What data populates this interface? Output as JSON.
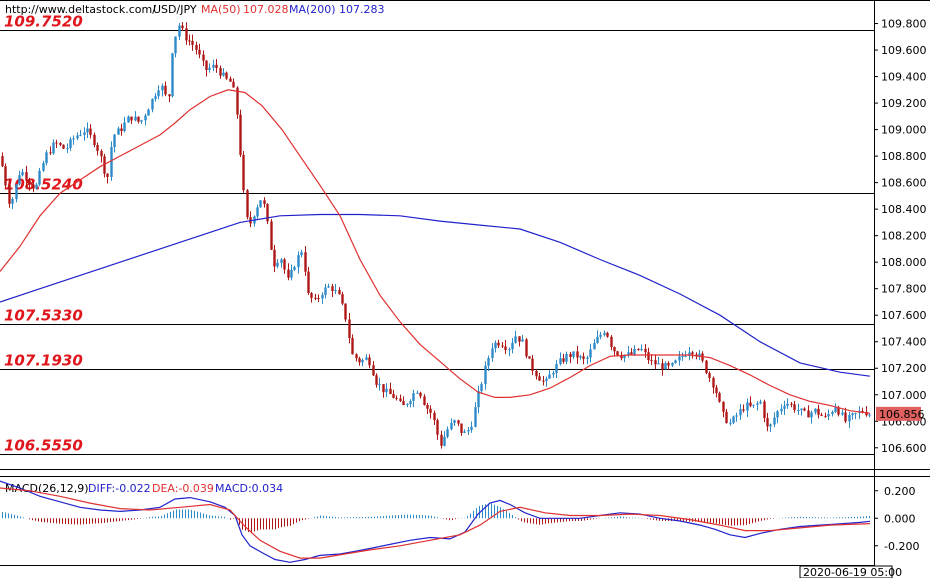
{
  "header": {
    "url": "http://www.deltastock.com/",
    "symbol": "USD/JPY",
    "ma50_label": "MA(50)",
    "ma50_value": "107.028",
    "ma200_label": "MA(200)",
    "ma200_value": "107.283"
  },
  "macd_header": {
    "label": "MACD(26,12,9)",
    "diff": "DIFF:-0.022",
    "dea": "DEA:-0.039",
    "macd": "MACD:0.034"
  },
  "colors": {
    "up": "#2e8bc9",
    "down": "#b01818",
    "ma50": "#e03030",
    "ma200": "#2222cc",
    "level_text": "#e0151b",
    "badge": "#e06060",
    "diff_line": "#2222cc",
    "dea_line": "#e03030"
  },
  "date_label": "2020-06-19 05:00",
  "last_price": "106.856",
  "chart_data": [
    {
      "type": "candlestick",
      "title": "USD/JPY",
      "ylim": [
        106.44,
        109.97
      ],
      "y_ticks": [
        "109.800",
        "109.600",
        "109.400",
        "109.200",
        "109.000",
        "108.800",
        "108.600",
        "108.400",
        "108.200",
        "108.000",
        "107.800",
        "107.600",
        "107.400",
        "107.200",
        "107.000",
        "106.800",
        "106.600"
      ],
      "levels": [
        {
          "value": 109.752,
          "label": "109.7520"
        },
        {
          "value": 108.524,
          "label": "108.5240"
        },
        {
          "value": 107.533,
          "label": "107.5330"
        },
        {
          "value": 107.193,
          "label": "107.1930"
        },
        {
          "value": 106.555,
          "label": "106.5550"
        }
      ],
      "price_path": [
        [
          0,
          108.8
        ],
        [
          10,
          108.42
        ],
        [
          20,
          108.7
        ],
        [
          35,
          108.55
        ],
        [
          45,
          108.8
        ],
        [
          55,
          108.9
        ],
        [
          65,
          108.85
        ],
        [
          75,
          108.95
        ],
        [
          85,
          109.0
        ],
        [
          95,
          108.9
        ],
        [
          100,
          108.8
        ],
        [
          107,
          108.62
        ],
        [
          112,
          108.95
        ],
        [
          120,
          109.0
        ],
        [
          130,
          109.1
        ],
        [
          140,
          109.05
        ],
        [
          150,
          109.2
        ],
        [
          160,
          109.35
        ],
        [
          168,
          109.2
        ],
        [
          172,
          109.6
        ],
        [
          178,
          109.8
        ],
        [
          185,
          109.7
        ],
        [
          195,
          109.62
        ],
        [
          205,
          109.45
        ],
        [
          215,
          109.48
        ],
        [
          225,
          109.38
        ],
        [
          232,
          109.35
        ],
        [
          238,
          109.05
        ],
        [
          242,
          108.6
        ],
        [
          248,
          108.25
        ],
        [
          255,
          108.4
        ],
        [
          262,
          108.5
        ],
        [
          268,
          108.25
        ],
        [
          273,
          107.98
        ],
        [
          280,
          108.05
        ],
        [
          288,
          107.85
        ],
        [
          295,
          108.0
        ],
        [
          302,
          108.1
        ],
        [
          308,
          107.75
        ],
        [
          315,
          107.7
        ],
        [
          322,
          107.78
        ],
        [
          330,
          107.82
        ],
        [
          338,
          107.75
        ],
        [
          345,
          107.6
        ],
        [
          352,
          107.3
        ],
        [
          360,
          107.25
        ],
        [
          368,
          107.28
        ],
        [
          376,
          107.1
        ],
        [
          385,
          107.02
        ],
        [
          395,
          106.98
        ],
        [
          402,
          106.9
        ],
        [
          410,
          106.98
        ],
        [
          418,
          107.05
        ],
        [
          425,
          106.92
        ],
        [
          432,
          106.85
        ],
        [
          440,
          106.62
        ],
        [
          448,
          106.75
        ],
        [
          455,
          106.8
        ],
        [
          463,
          106.7
        ],
        [
          470,
          106.75
        ],
        [
          478,
          107.0
        ],
        [
          485,
          107.2
        ],
        [
          492,
          107.38
        ],
        [
          500,
          107.4
        ],
        [
          508,
          107.35
        ],
        [
          515,
          107.45
        ],
        [
          522,
          107.4
        ],
        [
          530,
          107.22
        ],
        [
          537,
          107.15
        ],
        [
          545,
          107.08
        ],
        [
          552,
          107.18
        ],
        [
          560,
          107.25
        ],
        [
          568,
          107.3
        ],
        [
          575,
          107.3
        ],
        [
          585,
          107.25
        ],
        [
          595,
          107.4
        ],
        [
          605,
          107.5
        ],
        [
          612,
          107.35
        ],
        [
          620,
          107.3
        ],
        [
          630,
          107.3
        ],
        [
          640,
          107.35
        ],
        [
          650,
          107.25
        ],
        [
          660,
          107.22
        ],
        [
          670,
          107.2
        ],
        [
          680,
          107.28
        ],
        [
          690,
          107.35
        ],
        [
          700,
          107.28
        ],
        [
          708,
          107.15
        ],
        [
          715,
          107.05
        ],
        [
          722,
          106.85
        ],
        [
          730,
          106.78
        ],
        [
          737,
          106.85
        ],
        [
          745,
          106.92
        ],
        [
          752,
          106.9
        ],
        [
          760,
          106.95
        ],
        [
          768,
          106.72
        ],
        [
          775,
          106.85
        ],
        [
          785,
          106.95
        ],
        [
          795,
          106.9
        ],
        [
          805,
          106.85
        ],
        [
          815,
          106.88
        ],
        [
          825,
          106.82
        ],
        [
          835,
          106.92
        ],
        [
          845,
          106.8
        ],
        [
          855,
          106.85
        ],
        [
          862,
          106.88
        ],
        [
          870,
          106.856
        ]
      ],
      "ma50_path": [
        [
          0,
          107.93
        ],
        [
          20,
          108.12
        ],
        [
          40,
          108.35
        ],
        [
          60,
          108.52
        ],
        [
          80,
          108.62
        ],
        [
          100,
          108.72
        ],
        [
          120,
          108.8
        ],
        [
          140,
          108.88
        ],
        [
          160,
          108.96
        ],
        [
          175,
          109.05
        ],
        [
          190,
          109.15
        ],
        [
          210,
          109.25
        ],
        [
          228,
          109.3
        ],
        [
          245,
          109.28
        ],
        [
          262,
          109.18
        ],
        [
          282,
          109.0
        ],
        [
          300,
          108.8
        ],
        [
          320,
          108.58
        ],
        [
          340,
          108.35
        ],
        [
          360,
          108.02
        ],
        [
          380,
          107.75
        ],
        [
          400,
          107.55
        ],
        [
          420,
          107.38
        ],
        [
          440,
          107.25
        ],
        [
          460,
          107.12
        ],
        [
          478,
          107.02
        ],
        [
          495,
          106.98
        ],
        [
          510,
          106.98
        ],
        [
          530,
          107.0
        ],
        [
          550,
          107.05
        ],
        [
          570,
          107.13
        ],
        [
          590,
          107.22
        ],
        [
          610,
          107.29
        ],
        [
          630,
          107.3
        ],
        [
          650,
          107.3
        ],
        [
          670,
          107.3
        ],
        [
          690,
          107.3
        ],
        [
          710,
          107.28
        ],
        [
          730,
          107.22
        ],
        [
          750,
          107.15
        ],
        [
          770,
          107.07
        ],
        [
          790,
          107.0
        ],
        [
          810,
          106.95
        ],
        [
          830,
          106.92
        ],
        [
          850,
          106.88
        ],
        [
          870,
          106.86
        ]
      ],
      "ma200_path": [
        [
          0,
          107.7
        ],
        [
          40,
          107.8
        ],
        [
          80,
          107.9
        ],
        [
          120,
          108.0
        ],
        [
          160,
          108.1
        ],
        [
          200,
          108.2
        ],
        [
          240,
          108.3
        ],
        [
          280,
          108.35
        ],
        [
          320,
          108.36
        ],
        [
          360,
          108.36
        ],
        [
          400,
          108.35
        ],
        [
          440,
          108.31
        ],
        [
          480,
          108.28
        ],
        [
          520,
          108.25
        ],
        [
          560,
          108.15
        ],
        [
          600,
          108.02
        ],
        [
          640,
          107.9
        ],
        [
          680,
          107.76
        ],
        [
          720,
          107.6
        ],
        [
          760,
          107.4
        ],
        [
          800,
          107.24
        ],
        [
          840,
          107.17
        ],
        [
          870,
          107.14
        ]
      ]
    },
    {
      "type": "line",
      "title": "MACD(26,12,9)",
      "ylim": [
        -0.34,
        0.3
      ],
      "y_ticks": [
        "0.200",
        "0.000",
        "-0.200"
      ],
      "diff_path": [
        [
          0,
          0.27
        ],
        [
          20,
          0.22
        ],
        [
          40,
          0.16
        ],
        [
          60,
          0.12
        ],
        [
          80,
          0.08
        ],
        [
          100,
          0.06
        ],
        [
          120,
          0.05
        ],
        [
          140,
          0.06
        ],
        [
          160,
          0.08
        ],
        [
          175,
          0.14
        ],
        [
          190,
          0.15
        ],
        [
          210,
          0.12
        ],
        [
          225,
          0.08
        ],
        [
          235,
          0.02
        ],
        [
          242,
          -0.12
        ],
        [
          250,
          -0.2
        ],
        [
          262,
          -0.25
        ],
        [
          275,
          -0.3
        ],
        [
          290,
          -0.32
        ],
        [
          305,
          -0.3
        ],
        [
          320,
          -0.27
        ],
        [
          340,
          -0.26
        ],
        [
          355,
          -0.24
        ],
        [
          370,
          -0.22
        ],
        [
          390,
          -0.19
        ],
        [
          410,
          -0.16
        ],
        [
          430,
          -0.14
        ],
        [
          450,
          -0.15
        ],
        [
          465,
          -0.1
        ],
        [
          478,
          0.03
        ],
        [
          490,
          0.11
        ],
        [
          500,
          0.13
        ],
        [
          510,
          0.1
        ],
        [
          525,
          0.04
        ],
        [
          540,
          0.0
        ],
        [
          560,
          0.0
        ],
        [
          580,
          0.0
        ],
        [
          600,
          0.02
        ],
        [
          620,
          0.04
        ],
        [
          640,
          0.03
        ],
        [
          660,
          0.0
        ],
        [
          680,
          -0.02
        ],
        [
          700,
          -0.05
        ],
        [
          715,
          -0.08
        ],
        [
          730,
          -0.12
        ],
        [
          745,
          -0.14
        ],
        [
          760,
          -0.11
        ],
        [
          780,
          -0.08
        ],
        [
          800,
          -0.06
        ],
        [
          820,
          -0.05
        ],
        [
          840,
          -0.04
        ],
        [
          860,
          -0.03
        ],
        [
          870,
          -0.022
        ]
      ],
      "dea_path": [
        [
          0,
          0.22
        ],
        [
          30,
          0.2
        ],
        [
          60,
          0.16
        ],
        [
          90,
          0.11
        ],
        [
          120,
          0.07
        ],
        [
          150,
          0.06
        ],
        [
          180,
          0.08
        ],
        [
          210,
          0.1
        ],
        [
          230,
          0.06
        ],
        [
          245,
          -0.06
        ],
        [
          260,
          -0.16
        ],
        [
          280,
          -0.24
        ],
        [
          300,
          -0.29
        ],
        [
          320,
          -0.29
        ],
        [
          345,
          -0.26
        ],
        [
          370,
          -0.23
        ],
        [
          400,
          -0.2
        ],
        [
          430,
          -0.16
        ],
        [
          460,
          -0.12
        ],
        [
          480,
          -0.05
        ],
        [
          500,
          0.05
        ],
        [
          520,
          0.08
        ],
        [
          545,
          0.04
        ],
        [
          570,
          0.02
        ],
        [
          600,
          0.02
        ],
        [
          630,
          0.03
        ],
        [
          660,
          0.02
        ],
        [
          690,
          -0.01
        ],
        [
          720,
          -0.05
        ],
        [
          745,
          -0.09
        ],
        [
          770,
          -0.09
        ],
        [
          800,
          -0.07
        ],
        [
          830,
          -0.05
        ],
        [
          870,
          -0.039
        ]
      ]
    }
  ]
}
